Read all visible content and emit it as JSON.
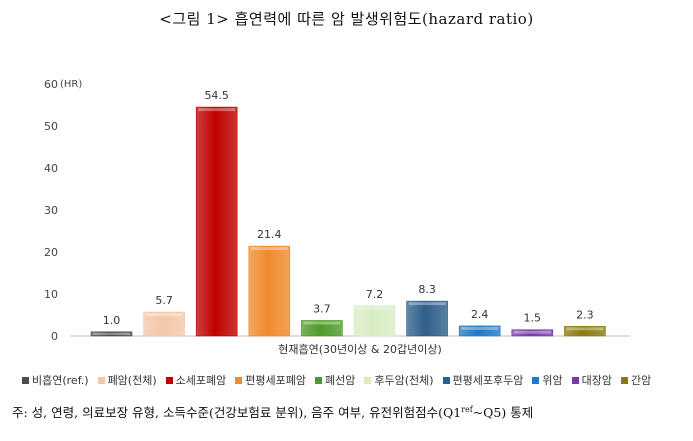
{
  "title": "<그림 1> 흡연력에 따른 암 발생위험도(hazard ratio)",
  "chart_data": {
    "type": "bar",
    "unit_label": "(HR)",
    "xlabel": "현재흡연(30년이상 & 20갑년이상)",
    "ylim": [
      0,
      60
    ],
    "yticks": [
      0,
      10,
      20,
      30,
      40,
      50,
      60
    ],
    "series": [
      {
        "name": "비흡연(ref.)",
        "value": 1.0,
        "label": "1.0",
        "color": "#4d4d4d"
      },
      {
        "name": "폐암(전체)",
        "value": 5.7,
        "label": "5.7",
        "color": "#f4c7a8"
      },
      {
        "name": "소세포폐암",
        "value": 54.5,
        "label": "54.5",
        "color": "#c00000"
      },
      {
        "name": "편평세포폐암",
        "value": 21.4,
        "label": "21.4",
        "color": "#f08a2c"
      },
      {
        "name": "폐선암",
        "value": 3.7,
        "label": "3.7",
        "color": "#4e9a2a"
      },
      {
        "name": "후두암(전체)",
        "value": 7.2,
        "label": "7.2",
        "color": "#d8ecc4"
      },
      {
        "name": "편평세포후두암",
        "value": 8.3,
        "label": "8.3",
        "color": "#2e5f8a"
      },
      {
        "name": "위암",
        "value": 2.4,
        "label": "2.4",
        "color": "#1f78c8"
      },
      {
        "name": "대장암",
        "value": 1.5,
        "label": "1.5",
        "color": "#7a35a8"
      },
      {
        "name": "간암",
        "value": 2.3,
        "label": "2.3",
        "color": "#8a7a10"
      }
    ]
  },
  "footnote": {
    "prefix": "주: 성, 연령, 의료보장 유형, 소득수준(건강보험료 분위), 음주 여부, 유전위험점수(Q1",
    "sup": "ref",
    "suffix": "~Q5) 통제"
  }
}
